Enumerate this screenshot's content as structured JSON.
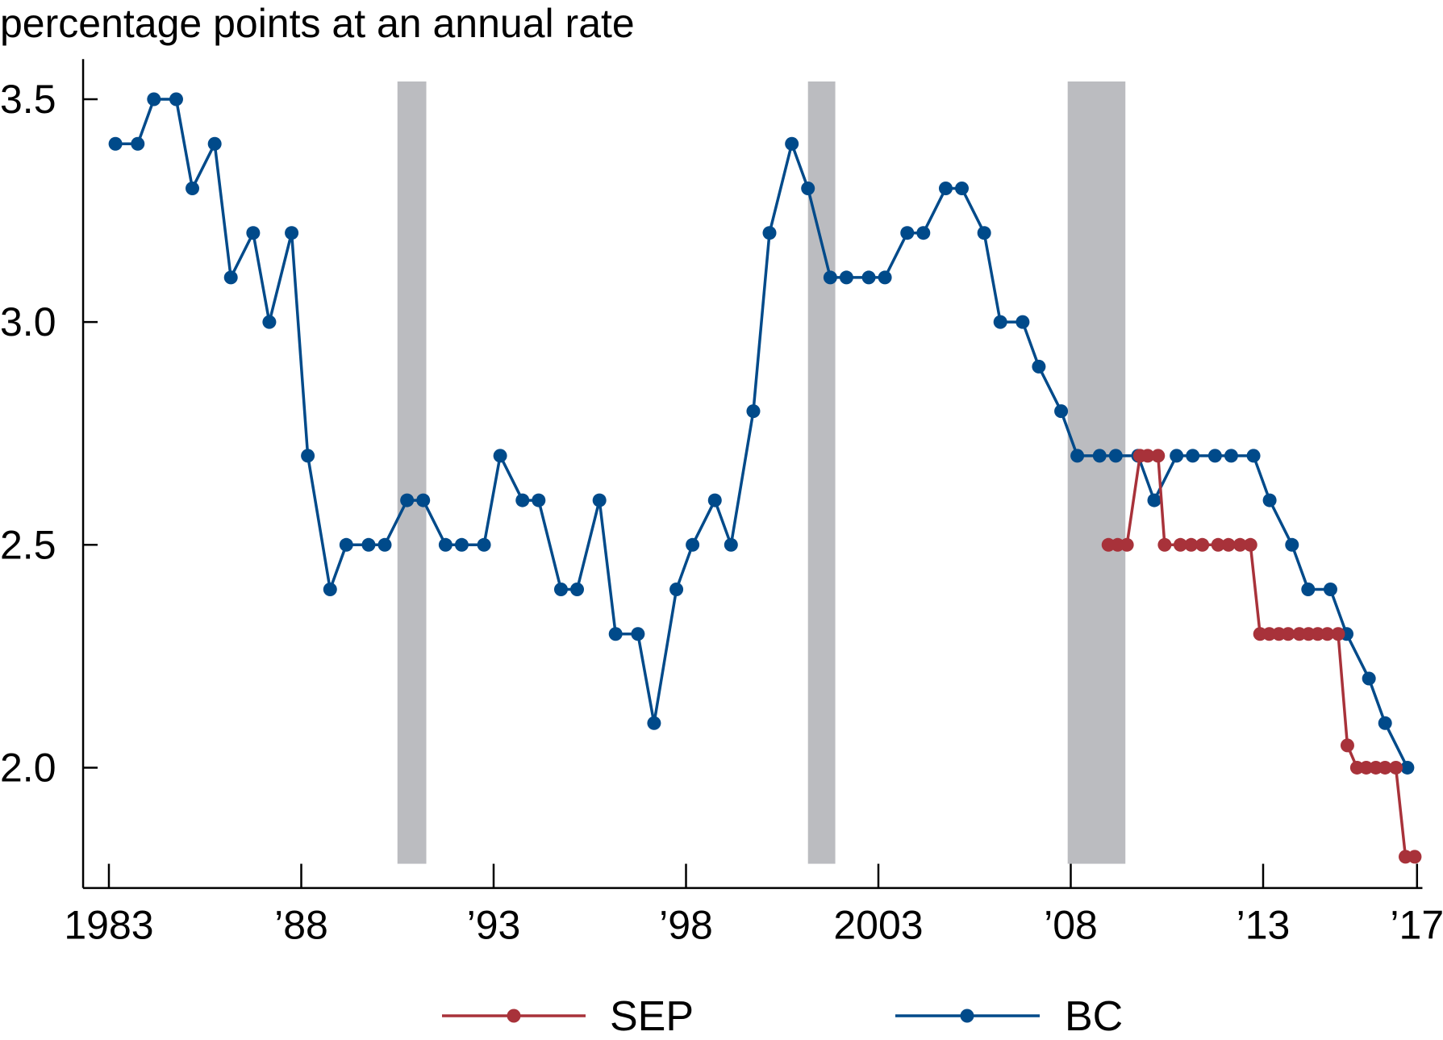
{
  "chart_data": {
    "type": "line",
    "title": "",
    "ylabel": "percentage points at an annual rate",
    "xlabel": "",
    "xlim": [
      1982.33,
      2017.14
    ],
    "ylim": [
      1.73,
      3.59
    ],
    "grid": false,
    "legend_position": "bottom",
    "x_ticks": [
      1983,
      1988,
      1993,
      1998,
      2003,
      2008,
      2013,
      2017
    ],
    "x_tick_labels": [
      "1983",
      "’88",
      "’93",
      "’98",
      "2003",
      "’08",
      "’13",
      "’17"
    ],
    "y_ticks": [
      2.0,
      2.5,
      3.0,
      3.5
    ],
    "y_tick_labels": [
      "2.0",
      "2.5",
      "3.0",
      "3.5"
    ],
    "shaded_periods": [
      [
        1990.5,
        1991.25
      ],
      [
        2001.17,
        2001.88
      ],
      [
        2007.92,
        2009.42
      ]
    ],
    "colors": {
      "SEP": "#a8323a",
      "BC": "#004a8a",
      "shading": "#bbbcc0"
    },
    "series": [
      {
        "name": "SEP",
        "x": [
          2008.98,
          2009.22,
          2009.46,
          2009.8,
          2010.0,
          2010.27,
          2010.44,
          2010.85,
          2011.13,
          2011.42,
          2011.83,
          2012.1,
          2012.4,
          2012.67,
          2012.92,
          2013.16,
          2013.41,
          2013.65,
          2013.94,
          2014.18,
          2014.42,
          2014.67,
          2014.95,
          2015.19,
          2015.44,
          2015.68,
          2015.93,
          2016.17,
          2016.45,
          2016.7,
          2016.94
        ],
        "values": [
          2.5,
          2.5,
          2.5,
          2.7,
          2.7,
          2.7,
          2.5,
          2.5,
          2.5,
          2.5,
          2.5,
          2.5,
          2.5,
          2.5,
          2.3,
          2.3,
          2.3,
          2.3,
          2.3,
          2.3,
          2.3,
          2.3,
          2.3,
          2.05,
          2.0,
          2.0,
          2.0,
          2.0,
          2.0,
          1.8,
          1.8
        ]
      },
      {
        "name": "BC",
        "x": [
          1983.17,
          1983.75,
          1984.17,
          1984.75,
          1985.17,
          1985.75,
          1986.17,
          1986.75,
          1987.17,
          1987.75,
          1988.17,
          1988.75,
          1989.17,
          1989.75,
          1990.17,
          1990.75,
          1991.17,
          1991.75,
          1992.17,
          1992.75,
          1993.17,
          1993.75,
          1994.17,
          1994.75,
          1995.17,
          1995.75,
          1996.17,
          1996.75,
          1997.17,
          1997.75,
          1998.17,
          1998.75,
          1999.17,
          1999.75,
          2000.17,
          2000.75,
          2001.17,
          2001.75,
          2002.17,
          2002.75,
          2003.17,
          2003.75,
          2004.17,
          2004.75,
          2005.17,
          2005.75,
          2006.17,
          2006.75,
          2007.17,
          2007.75,
          2008.17,
          2008.75,
          2009.17,
          2009.75,
          2010.17,
          2010.75,
          2011.17,
          2011.75,
          2012.17,
          2012.75,
          2013.17,
          2013.75,
          2014.17,
          2014.75,
          2015.17,
          2015.75,
          2016.17,
          2016.75
        ],
        "values": [
          3.4,
          3.4,
          3.5,
          3.5,
          3.3,
          3.4,
          3.1,
          3.2,
          3.0,
          3.2,
          2.7,
          2.4,
          2.5,
          2.5,
          2.5,
          2.6,
          2.6,
          2.5,
          2.5,
          2.5,
          2.7,
          2.6,
          2.6,
          2.4,
          2.4,
          2.6,
          2.3,
          2.3,
          2.1,
          2.4,
          2.5,
          2.6,
          2.5,
          2.8,
          3.2,
          3.4,
          3.3,
          3.1,
          3.1,
          3.1,
          3.1,
          3.2,
          3.2,
          3.3,
          3.3,
          3.2,
          3.0,
          3.0,
          2.9,
          2.8,
          2.7,
          2.7,
          2.7,
          2.7,
          2.6,
          2.7,
          2.7,
          2.7,
          2.7,
          2.7,
          2.6,
          2.5,
          2.4,
          2.4,
          2.3,
          2.2,
          2.1,
          2.0
        ]
      }
    ]
  }
}
